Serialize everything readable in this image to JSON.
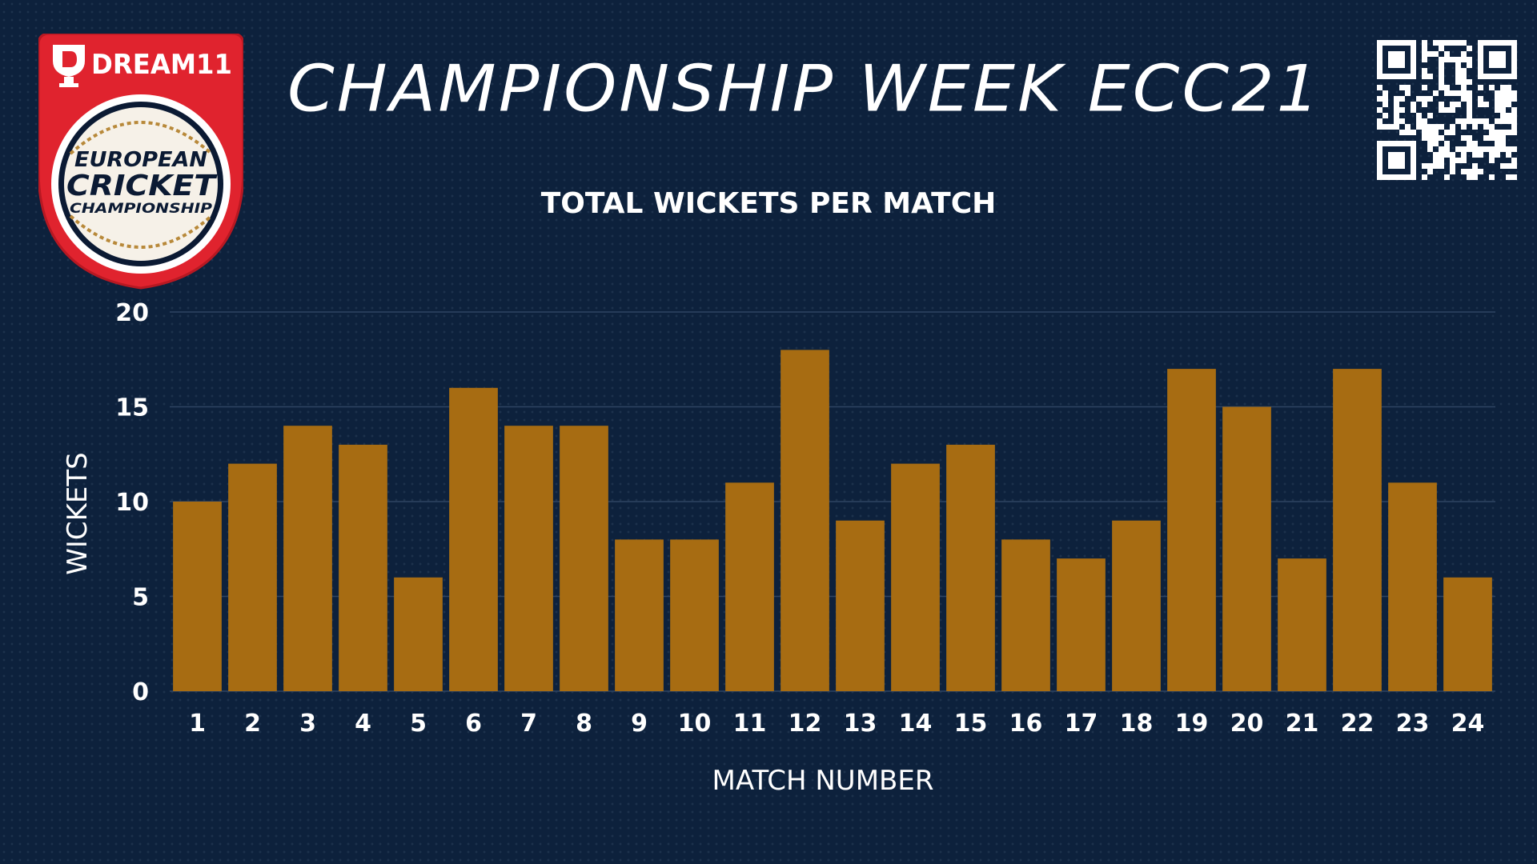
{
  "header": {
    "title": "CHAMPIONSHIP WEEK ECC21",
    "logo": {
      "brand_text": "DREAM11",
      "line1": "EUROPEAN",
      "line2": "CRICKET",
      "line3": "CHAMPIONSHIP"
    },
    "qr_icon": "qr-code-icon"
  },
  "colors": {
    "background": "#0d213c",
    "bar": "#a76c12",
    "grid": "#2f4462",
    "logo_red": "#e0232e",
    "logo_gold": "#b8893a"
  },
  "chart_data": {
    "type": "bar",
    "title": "TOTAL WICKETS PER MATCH",
    "xlabel": "MATCH NUMBER",
    "ylabel": "WICKETS",
    "categories": [
      "1",
      "2",
      "3",
      "4",
      "5",
      "6",
      "7",
      "8",
      "9",
      "10",
      "11",
      "12",
      "13",
      "14",
      "15",
      "16",
      "17",
      "18",
      "19",
      "20",
      "21",
      "22",
      "23",
      "24"
    ],
    "values": [
      10,
      12,
      14,
      13,
      6,
      16,
      14,
      14,
      8,
      8,
      11,
      18,
      9,
      12,
      13,
      8,
      7,
      9,
      17,
      15,
      7,
      17,
      11,
      6
    ],
    "ylim": [
      0,
      20
    ],
    "yticks": [
      "0",
      "5",
      "10",
      "15",
      "20"
    ],
    "grid": true,
    "legend": "none"
  }
}
